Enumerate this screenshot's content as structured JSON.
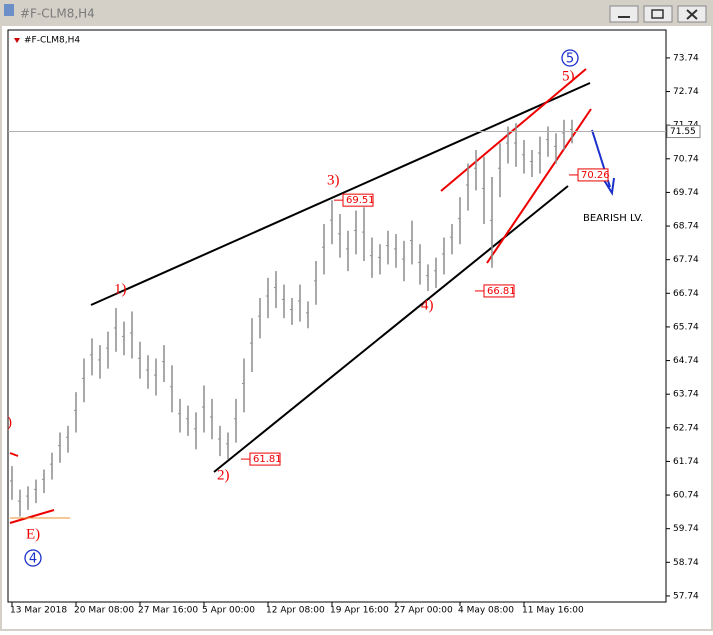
{
  "window_title": "#F-CLM8,H4",
  "chart_data": {
    "type": "ohlc",
    "title": "#F-CLM8,H4",
    "categories": [
      "13 Mar 2018",
      null,
      null,
      null,
      null,
      null,
      null,
      null,
      "20 Mar 08:00",
      null,
      null,
      null,
      null,
      null,
      null,
      null,
      "27 Mar 16:00",
      null,
      null,
      null,
      null,
      null,
      null,
      null,
      "5 Apr 00:00",
      null,
      null,
      null,
      null,
      null,
      null,
      null,
      "12 Apr 08:00",
      null,
      null,
      null,
      null,
      null,
      null,
      null,
      "19 Apr 16:00",
      null,
      null,
      null,
      null,
      null,
      null,
      null,
      "27 Apr 00:00",
      null,
      null,
      null,
      null,
      null,
      null,
      null,
      "4 May 08:00",
      null,
      null,
      null,
      null,
      null,
      null,
      null,
      "11 May 16:00",
      null,
      null,
      null,
      null,
      null,
      null
    ],
    "high": [
      61.6,
      60.9,
      61.0,
      61.2,
      61.5,
      62.0,
      62.6,
      62.8,
      63.8,
      64.8,
      65.4,
      65.2,
      65.6,
      66.3,
      65.9,
      66.2,
      65.3,
      64.9,
      64.8,
      65.2,
      64.6,
      63.6,
      63.4,
      63.2,
      64.0,
      63.6,
      62.8,
      62.6,
      63.6,
      64.8,
      66.0,
      66.6,
      67.2,
      67.4,
      67.0,
      66.6,
      67.0,
      66.5,
      67.7,
      68.8,
      69.51,
      69.1,
      68.6,
      69.2,
      69.3,
      68.4,
      68.2,
      68.6,
      68.5,
      68.3,
      68.9,
      68.2,
      67.6,
      67.8,
      68.4,
      68.8,
      69.6,
      70.6,
      71.0,
      70.8,
      70.2,
      71.2,
      71.7,
      71.8,
      71.3,
      71.0,
      71.4,
      71.7,
      71.5,
      71.9,
      71.9
    ],
    "low": [
      60.6,
      60.1,
      60.3,
      60.5,
      60.8,
      61.2,
      61.7,
      62.0,
      62.6,
      63.5,
      64.3,
      64.2,
      64.5,
      65.0,
      64.9,
      64.8,
      64.2,
      63.9,
      63.7,
      64.1,
      63.2,
      62.6,
      62.5,
      62.1,
      62.6,
      62.4,
      61.9,
      61.81,
      62.3,
      63.2,
      64.4,
      65.4,
      66.0,
      66.3,
      66.0,
      65.8,
      65.9,
      65.7,
      66.4,
      67.3,
      68.2,
      67.8,
      67.4,
      67.9,
      67.7,
      67.2,
      67.3,
      67.6,
      67.5,
      67.1,
      67.6,
      67.0,
      66.81,
      66.9,
      67.3,
      67.9,
      68.2,
      69.2,
      69.8,
      68.8,
      67.5,
      69.6,
      70.6,
      70.5,
      70.3,
      70.2,
      70.3,
      70.8,
      70.6,
      71.0,
      71.2
    ],
    "color": "#8c8c8c",
    "ylim": [
      57.56,
      74.57
    ],
    "yticks": [
      57.74,
      58.74,
      59.74,
      60.74,
      61.74,
      62.74,
      63.74,
      64.74,
      65.74,
      66.74,
      67.74,
      68.74,
      69.74,
      70.74,
      71.74,
      72.74,
      73.74
    ],
    "last_price": 71.55,
    "price_labels": [
      69.51,
      61.81,
      66.81,
      70.26
    ],
    "wave_labels": [
      "1)",
      "2)",
      "3)",
      "4)",
      "5)",
      "E)",
      ")"
    ],
    "wave_circles": [
      "5",
      "4"
    ],
    "note": "BEARISH LV."
  }
}
